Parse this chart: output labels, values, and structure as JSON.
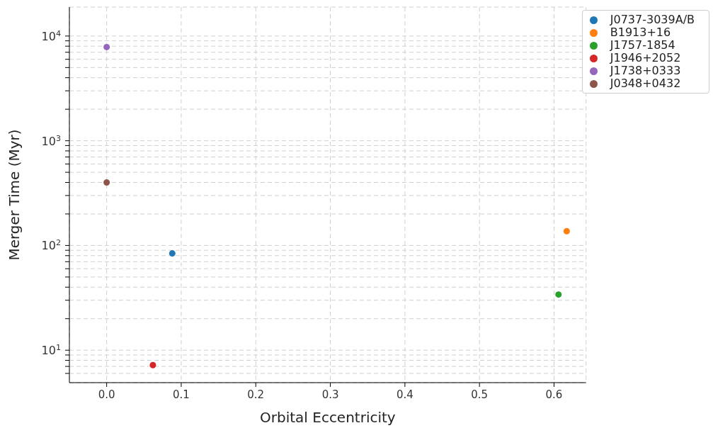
{
  "chart_data": {
    "type": "scatter",
    "xlabel": "Orbital Eccentricity",
    "ylabel": "Merger Time (Myr)",
    "series": [
      {
        "name": "J0737-3039A/B",
        "color": "#1f77b4",
        "x": [
          0.088
        ],
        "values": [
          84
        ]
      },
      {
        "name": "B1913+16",
        "color": "#ff7f0e",
        "x": [
          0.617
        ],
        "values": [
          137
        ]
      },
      {
        "name": "J1757-1854",
        "color": "#2ca02c",
        "x": [
          0.606
        ],
        "values": [
          34
        ]
      },
      {
        "name": "J1946+2052",
        "color": "#d62728",
        "x": [
          0.062
        ],
        "values": [
          7.2
        ]
      },
      {
        "name": "J1738+0333",
        "color": "#9467bd",
        "x": [
          0.0
        ],
        "values": [
          7850
        ]
      },
      {
        "name": "J0348+0432",
        "color": "#8c564b",
        "x": [
          0.0
        ],
        "values": [
          400
        ]
      }
    ],
    "xlim": [
      -0.05,
      0.643
    ],
    "xticks": [
      {
        "value": 0,
        "label": "0.0"
      },
      {
        "value": 0.1,
        "label": "0.1"
      },
      {
        "value": 0.2,
        "label": "0.2"
      },
      {
        "value": 0.3,
        "label": "0.3"
      },
      {
        "value": 0.4,
        "label": "0.4"
      },
      {
        "value": 0.5,
        "label": "0.5"
      },
      {
        "value": 0.6,
        "label": "0.6"
      }
    ],
    "ylim": [
      4.9,
      18900
    ],
    "log": "y",
    "yticks": [
      {
        "value": 6,
        "label": null
      },
      {
        "value": 7,
        "label": null
      },
      {
        "value": 8,
        "label": null
      },
      {
        "value": 9,
        "label": null
      },
      {
        "value": 10,
        "label": "10$^{1}$"
      },
      {
        "value": 20,
        "label": null
      },
      {
        "value": 30,
        "label": null
      },
      {
        "value": 40,
        "label": null
      },
      {
        "value": 50,
        "label": null
      },
      {
        "value": 60,
        "label": null
      },
      {
        "value": 70,
        "label": null
      },
      {
        "value": 80,
        "label": null
      },
      {
        "value": 90,
        "label": null
      },
      {
        "value": 100,
        "label": "10$^{2}$"
      },
      {
        "value": 200,
        "label": null
      },
      {
        "value": 300,
        "label": null
      },
      {
        "value": 400,
        "label": null
      },
      {
        "value": 500,
        "label": null
      },
      {
        "value": 600,
        "label": null
      },
      {
        "value": 700,
        "label": null
      },
      {
        "value": 800,
        "label": null
      },
      {
        "value": 900,
        "label": null
      },
      {
        "value": 1000,
        "label": "10$^{3}$"
      },
      {
        "value": 2000,
        "label": null
      },
      {
        "value": 3000,
        "label": null
      },
      {
        "value": 4000,
        "label": null
      },
      {
        "value": 5000,
        "label": null
      },
      {
        "value": 6000,
        "label": null
      },
      {
        "value": 7000,
        "label": null
      },
      {
        "value": 8000,
        "label": null
      },
      {
        "value": 9000,
        "label": null
      },
      {
        "value": 10000,
        "label": "10$^{4}$"
      }
    ],
    "grid": true,
    "legend": "top right",
    "marker": "circle"
  }
}
